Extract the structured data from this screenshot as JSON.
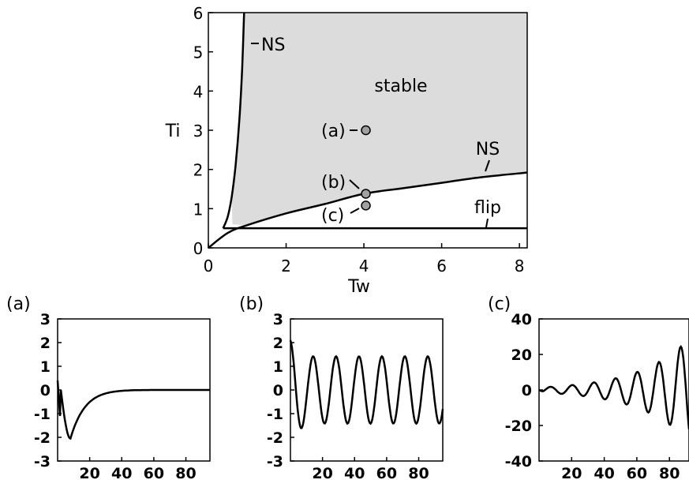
{
  "chart_data": [
    {
      "type": "line",
      "panel": "main",
      "xlabel": "Tw",
      "ylabel": "Ti",
      "xlim": [
        0,
        8.2
      ],
      "ylim": [
        0,
        6
      ],
      "xticks": [
        0,
        2,
        4,
        6,
        8
      ],
      "yticks": [
        0,
        1,
        2,
        3,
        4,
        5,
        6
      ],
      "series": [
        {
          "values": [
            [
              0.38,
              0.5
            ],
            [
              0.5,
              0.8
            ],
            [
              0.6,
              1.3
            ],
            [
              0.7,
              2.1
            ],
            [
              0.8,
              3.3
            ],
            [
              0.87,
              4.6
            ],
            [
              0.92,
              6.0
            ]
          ]
        },
        {
          "values": [
            [
              0.0,
              0.0
            ],
            [
              0.5,
              0.38
            ],
            [
              1.0,
              0.58
            ],
            [
              2.0,
              0.88
            ],
            [
              3.0,
              1.12
            ],
            [
              4.0,
              1.38
            ],
            [
              5.0,
              1.52
            ],
            [
              6.0,
              1.66
            ],
            [
              7.0,
              1.8
            ],
            [
              8.2,
              1.92
            ]
          ]
        },
        {
          "values": [
            [
              0.38,
              0.5
            ],
            [
              8.2,
              0.5
            ]
          ]
        }
      ],
      "region": {
        "label": "stable",
        "fill": "#dcdcdc"
      },
      "annotations": [
        {
          "text": "NS",
          "x": 1.2,
          "y": 5.25
        },
        {
          "text": "stable",
          "x": 4.5,
          "y": 4.2
        },
        {
          "text": "NS",
          "x": 7.0,
          "y": 2.5
        },
        {
          "text": "flip",
          "x": 7.2,
          "y": 1.0
        },
        {
          "text": "(a)",
          "x": 3.5,
          "y": 3.0
        },
        {
          "text": "(b)",
          "x": 3.5,
          "y": 1.65
        },
        {
          "text": "(c)",
          "x": 3.5,
          "y": 0.85
        }
      ],
      "points": [
        {
          "label": "(a)",
          "x": 4.05,
          "y": 3.0
        },
        {
          "label": "(b)",
          "x": 4.05,
          "y": 1.38
        },
        {
          "label": "(c)",
          "x": 4.05,
          "y": 1.08
        }
      ]
    },
    {
      "type": "line",
      "panel": "(a)",
      "xlim": [
        0,
        95
      ],
      "ylim": [
        -3,
        3
      ],
      "xticks": [
        20,
        40,
        60,
        80
      ],
      "yticks": [
        -3,
        -2,
        -1,
        0,
        1,
        2,
        3
      ],
      "series": [
        {
          "kind": "decay",
          "start": 0.4,
          "min_x": 8,
          "min_y": -2.05,
          "settle_x": 40
        }
      ]
    },
    {
      "type": "line",
      "panel": "(b)",
      "xlim": [
        0,
        95
      ],
      "ylim": [
        -3,
        3
      ],
      "xticks": [
        20,
        40,
        60,
        80
      ],
      "yticks": [
        -3,
        -2,
        -1,
        0,
        1,
        2,
        3
      ],
      "series": [
        {
          "kind": "oscillation",
          "amplitude": 1.42,
          "period": 14.3,
          "first_min_x": 7,
          "first_min_y": -2.1
        }
      ]
    },
    {
      "type": "line",
      "panel": "(c)",
      "xlim": [
        0,
        92
      ],
      "ylim": [
        -40,
        40
      ],
      "xticks": [
        20,
        40,
        60,
        80
      ],
      "yticks": [
        -40,
        -20,
        0,
        20,
        40
      ],
      "series": [
        {
          "kind": "growing_oscillation",
          "period": 13.3,
          "peaks": [
            [
              24,
              3.5
            ],
            [
              38,
              5.5
            ],
            [
              52,
              8.5
            ],
            [
              66,
              13.5
            ],
            [
              79,
              20.5
            ]
          ],
          "troughs": [
            [
              6,
              -2
            ],
            [
              31,
              -4
            ],
            [
              45,
              -6.5
            ],
            [
              59,
              -10
            ],
            [
              72,
              -16
            ],
            [
              85,
              -25
            ]
          ]
        }
      ]
    }
  ]
}
